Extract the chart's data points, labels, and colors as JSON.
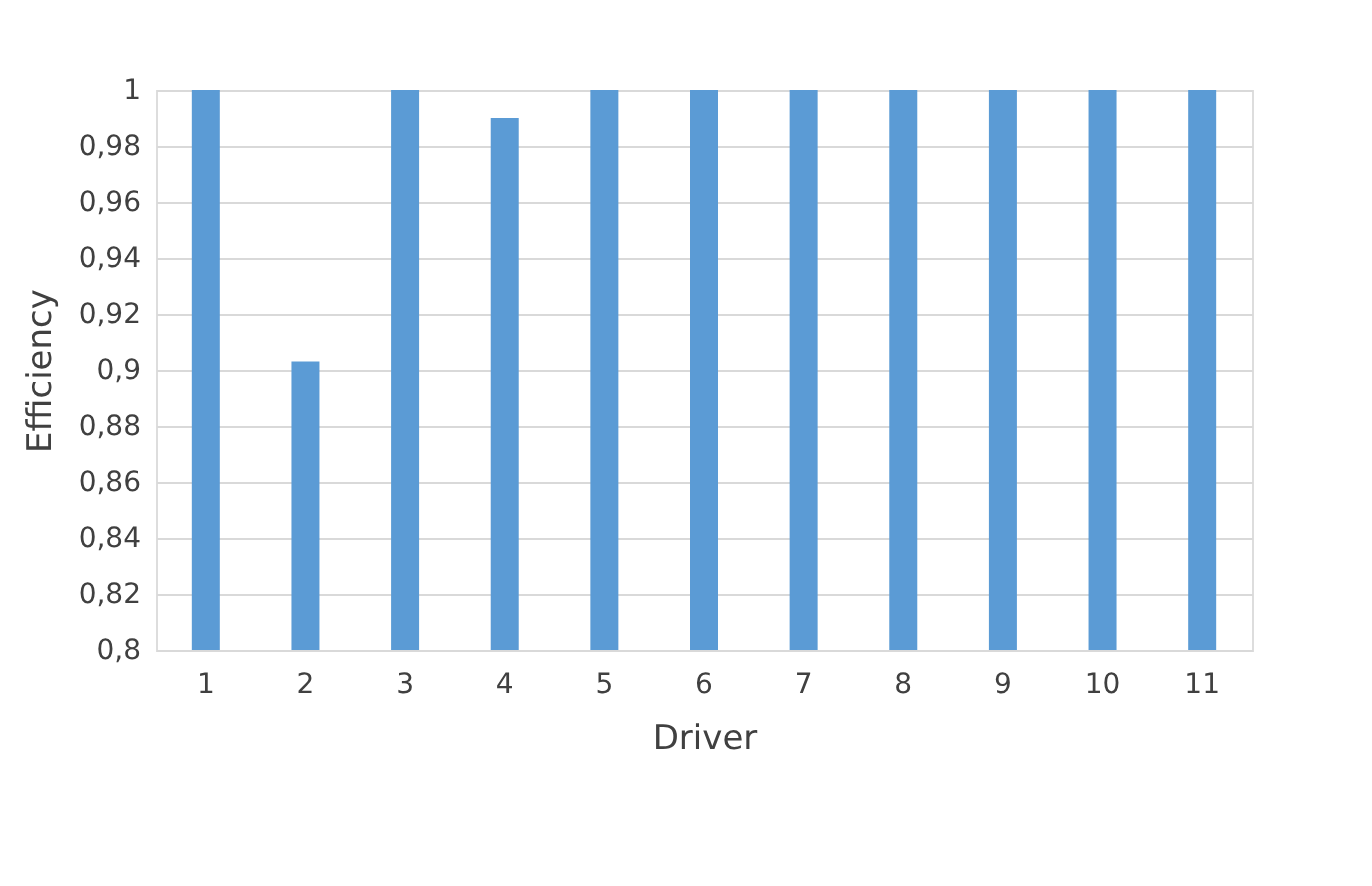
{
  "chart_data": {
    "type": "bar",
    "xlabel": "Driver",
    "ylabel": "Efficiency",
    "categories": [
      "1",
      "2",
      "3",
      "4",
      "5",
      "6",
      "7",
      "8",
      "9",
      "10",
      "11"
    ],
    "values": [
      1,
      0.903,
      1,
      0.99,
      1,
      1,
      1,
      1,
      1,
      1,
      1
    ],
    "color": "#5b9bd5",
    "ylim": [
      0.8,
      1
    ],
    "yticks": [
      {
        "value": 0.8,
        "label": "0,8"
      },
      {
        "value": 0.82,
        "label": "0,82"
      },
      {
        "value": 0.84,
        "label": "0,84"
      },
      {
        "value": 0.86,
        "label": "0,86"
      },
      {
        "value": 0.88,
        "label": "0,88"
      },
      {
        "value": 0.9,
        "label": "0,9"
      },
      {
        "value": 0.92,
        "label": "0,92"
      },
      {
        "value": 0.94,
        "label": "0,94"
      },
      {
        "value": 0.96,
        "label": "0,96"
      },
      {
        "value": 0.98,
        "label": "0,98"
      },
      {
        "value": 1,
        "label": "1"
      }
    ],
    "grid": "y"
  }
}
